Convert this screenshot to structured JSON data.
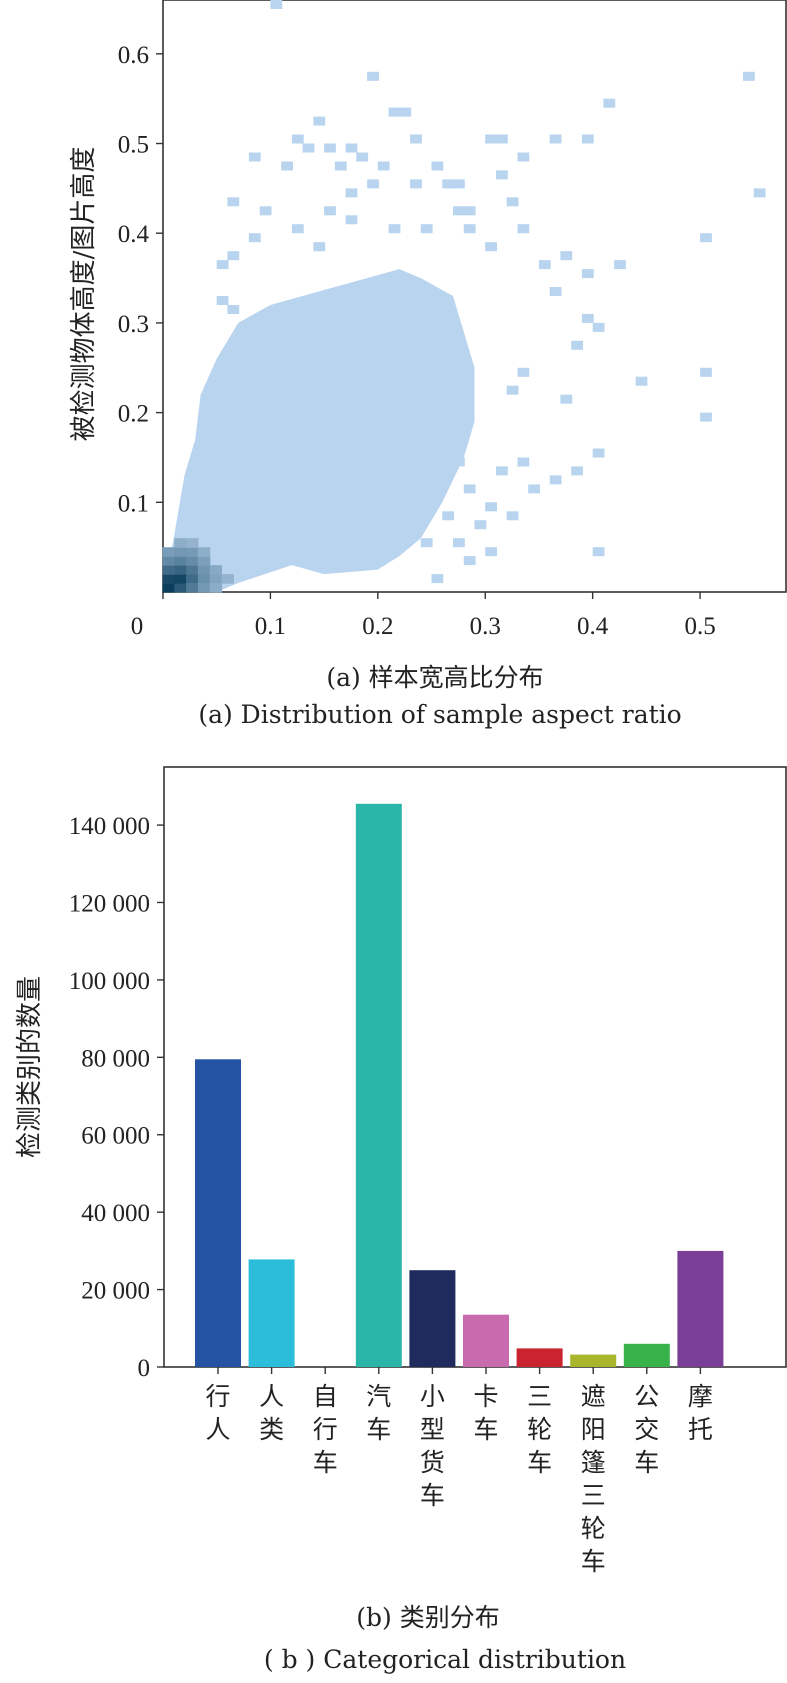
{
  "chart_data": [
    {
      "type": "heatmap",
      "title": "",
      "caption_cn": "(a) 样本宽高比分布",
      "caption_en": "(a) Distribution of sample aspect ratio",
      "xlabel": "",
      "ylabel": "被检测物体高度/图片高度",
      "xlim": [
        0,
        0.58
      ],
      "ylim": [
        0,
        0.66
      ],
      "xticks": [
        0,
        0.1,
        0.2,
        0.3,
        0.4,
        0.5
      ],
      "xtick_labels": [
        "0",
        "0.1",
        "0.2",
        "0.3",
        "0.4",
        "0.5"
      ],
      "yticks": [
        0.1,
        0.2,
        0.3,
        0.4,
        0.5,
        0.6
      ],
      "ytick_labels": [
        "0.1",
        "0.2",
        "0.3",
        "0.4",
        "0.5",
        "0.6"
      ],
      "bin_width": 0.011,
      "bin_height": 0.01,
      "color_low": "#b9d4ee",
      "color_high": "#0a3e5c",
      "region_edge": [
        [
          0.0,
          0.0
        ],
        [
          0.01,
          0.06
        ],
        [
          0.02,
          0.13
        ],
        [
          0.03,
          0.17
        ],
        [
          0.035,
          0.22
        ],
        [
          0.05,
          0.26
        ],
        [
          0.07,
          0.3
        ],
        [
          0.1,
          0.32
        ],
        [
          0.13,
          0.33
        ],
        [
          0.16,
          0.34
        ],
        [
          0.19,
          0.35
        ],
        [
          0.22,
          0.36
        ],
        [
          0.24,
          0.35
        ],
        [
          0.27,
          0.33
        ],
        [
          0.28,
          0.29
        ],
        [
          0.29,
          0.25
        ],
        [
          0.29,
          0.19
        ],
        [
          0.28,
          0.15
        ],
        [
          0.26,
          0.1
        ],
        [
          0.24,
          0.06
        ],
        [
          0.22,
          0.04
        ],
        [
          0.2,
          0.025
        ],
        [
          0.15,
          0.02
        ],
        [
          0.12,
          0.03
        ],
        [
          0.07,
          0.01
        ],
        [
          0.05,
          0.0
        ]
      ],
      "scattered_cells": [
        [
          0.1,
          0.65
        ],
        [
          0.19,
          0.57
        ],
        [
          0.21,
          0.53
        ],
        [
          0.22,
          0.53
        ],
        [
          0.14,
          0.52
        ],
        [
          0.12,
          0.5
        ],
        [
          0.13,
          0.49
        ],
        [
          0.15,
          0.49
        ],
        [
          0.17,
          0.49
        ],
        [
          0.18,
          0.48
        ],
        [
          0.23,
          0.5
        ],
        [
          0.3,
          0.5
        ],
        [
          0.31,
          0.5
        ],
        [
          0.36,
          0.5
        ],
        [
          0.39,
          0.5
        ],
        [
          0.41,
          0.54
        ],
        [
          0.54,
          0.57
        ],
        [
          0.55,
          0.44
        ],
        [
          0.08,
          0.48
        ],
        [
          0.11,
          0.47
        ],
        [
          0.16,
          0.47
        ],
        [
          0.2,
          0.47
        ],
        [
          0.25,
          0.47
        ],
        [
          0.31,
          0.46
        ],
        [
          0.33,
          0.48
        ],
        [
          0.06,
          0.43
        ],
        [
          0.09,
          0.42
        ],
        [
          0.15,
          0.42
        ],
        [
          0.17,
          0.44
        ],
        [
          0.19,
          0.45
        ],
        [
          0.23,
          0.45
        ],
        [
          0.26,
          0.45
        ],
        [
          0.27,
          0.45
        ],
        [
          0.28,
          0.42
        ],
        [
          0.32,
          0.43
        ],
        [
          0.27,
          0.42
        ],
        [
          0.05,
          0.36
        ],
        [
          0.06,
          0.37
        ],
        [
          0.08,
          0.39
        ],
        [
          0.12,
          0.4
        ],
        [
          0.14,
          0.38
        ],
        [
          0.17,
          0.41
        ],
        [
          0.21,
          0.4
        ],
        [
          0.24,
          0.4
        ],
        [
          0.28,
          0.4
        ],
        [
          0.33,
          0.4
        ],
        [
          0.35,
          0.36
        ],
        [
          0.37,
          0.37
        ],
        [
          0.42,
          0.36
        ],
        [
          0.5,
          0.39
        ],
        [
          0.3,
          0.38
        ],
        [
          0.39,
          0.35
        ],
        [
          0.05,
          0.32
        ],
        [
          0.06,
          0.31
        ],
        [
          0.36,
          0.33
        ],
        [
          0.39,
          0.3
        ],
        [
          0.38,
          0.27
        ],
        [
          0.4,
          0.29
        ],
        [
          0.44,
          0.23
        ],
        [
          0.33,
          0.24
        ],
        [
          0.32,
          0.22
        ],
        [
          0.37,
          0.21
        ],
        [
          0.5,
          0.24
        ],
        [
          0.5,
          0.19
        ],
        [
          0.4,
          0.15
        ],
        [
          0.38,
          0.13
        ],
        [
          0.34,
          0.11
        ],
        [
          0.36,
          0.12
        ],
        [
          0.31,
          0.13
        ],
        [
          0.33,
          0.14
        ],
        [
          0.3,
          0.09
        ],
        [
          0.32,
          0.08
        ],
        [
          0.29,
          0.07
        ],
        [
          0.3,
          0.04
        ],
        [
          0.28,
          0.03
        ],
        [
          0.25,
          0.01
        ],
        [
          0.4,
          0.04
        ],
        [
          0.22,
          0.21
        ],
        [
          0.23,
          0.18
        ],
        [
          0.24,
          0.19
        ],
        [
          0.26,
          0.16
        ],
        [
          0.27,
          0.14
        ],
        [
          0.25,
          0.12
        ],
        [
          0.28,
          0.11
        ],
        [
          0.26,
          0.08
        ],
        [
          0.27,
          0.05
        ],
        [
          0.24,
          0.05
        ]
      ],
      "dense_cells": [
        {
          "x": 0.005,
          "y": 0.005,
          "v": 1.0
        },
        {
          "x": 0.005,
          "y": 0.015,
          "v": 0.92
        },
        {
          "x": 0.016,
          "y": 0.005,
          "v": 0.82
        },
        {
          "x": 0.016,
          "y": 0.015,
          "v": 0.95
        },
        {
          "x": 0.016,
          "y": 0.025,
          "v": 0.75
        },
        {
          "x": 0.027,
          "y": 0.015,
          "v": 0.7
        },
        {
          "x": 0.027,
          "y": 0.025,
          "v": 0.62
        },
        {
          "x": 0.005,
          "y": 0.025,
          "v": 0.7
        },
        {
          "x": 0.005,
          "y": 0.035,
          "v": 0.5
        },
        {
          "x": 0.016,
          "y": 0.035,
          "v": 0.55
        },
        {
          "x": 0.027,
          "y": 0.035,
          "v": 0.48
        },
        {
          "x": 0.038,
          "y": 0.025,
          "v": 0.42
        },
        {
          "x": 0.027,
          "y": 0.005,
          "v": 0.6
        },
        {
          "x": 0.038,
          "y": 0.015,
          "v": 0.45
        },
        {
          "x": 0.049,
          "y": 0.015,
          "v": 0.32
        },
        {
          "x": 0.038,
          "y": 0.035,
          "v": 0.35
        },
        {
          "x": 0.027,
          "y": 0.045,
          "v": 0.38
        },
        {
          "x": 0.005,
          "y": 0.045,
          "v": 0.36
        },
        {
          "x": 0.016,
          "y": 0.045,
          "v": 0.4
        },
        {
          "x": 0.049,
          "y": 0.025,
          "v": 0.28
        },
        {
          "x": 0.06,
          "y": 0.015,
          "v": 0.22
        },
        {
          "x": 0.038,
          "y": 0.045,
          "v": 0.25
        },
        {
          "x": 0.016,
          "y": 0.055,
          "v": 0.26
        },
        {
          "x": 0.027,
          "y": 0.055,
          "v": 0.22
        },
        {
          "x": 0.038,
          "y": 0.005,
          "v": 0.4
        },
        {
          "x": 0.049,
          "y": 0.005,
          "v": 0.26
        }
      ]
    },
    {
      "type": "bar",
      "title": "",
      "caption_cn": "(b) 类别分布",
      "caption_en": "( b ) Categorical distribution",
      "xlabel": "",
      "ylabel": "检测类别的数量",
      "ylim": [
        0,
        155000
      ],
      "yticks": [
        0,
        20000,
        40000,
        60000,
        80000,
        100000,
        120000,
        140000
      ],
      "ytick_labels": [
        "0",
        "20 000",
        "40 000",
        "60 000",
        "80 000",
        "100 000",
        "120 000",
        "140 000"
      ],
      "categories": [
        "行人",
        "人类",
        "自行车",
        "汽车",
        "小型货车",
        "卡车",
        "三轮车",
        "遮阳篷三轮车",
        "公交车",
        "摩托"
      ],
      "values": [
        79500,
        27800,
        0,
        145500,
        25000,
        13500,
        4800,
        3200,
        6000,
        30000
      ],
      "colors": [
        "#2453a4",
        "#2bbdd9",
        "#8b2f8b",
        "#29b6a9",
        "#1f2b5c",
        "#c86aad",
        "#c9242f",
        "#a9b52a",
        "#38b34a",
        "#7a3e96"
      ]
    }
  ]
}
